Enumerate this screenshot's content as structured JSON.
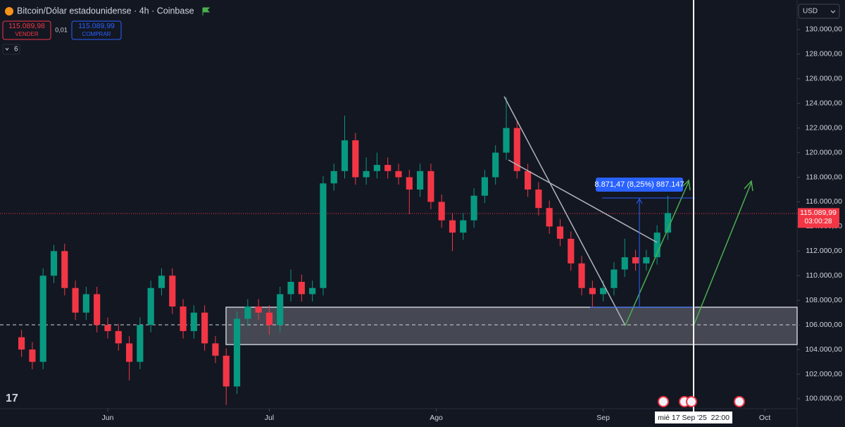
{
  "header": {
    "symbol": "Bitcoin/Dólar estadounidense · 4h · Coinbase",
    "sell_price": "115.089,98",
    "sell_label": "VENDER",
    "spread": "0,01",
    "buy_price": "115.089,99",
    "buy_label": "COMPRAR",
    "indicators": "6",
    "currency": "USD"
  },
  "chart_data": {
    "type": "candlestick",
    "x": [
      4,
      6,
      8,
      10,
      12,
      14,
      16,
      18,
      20,
      22,
      24,
      26,
      28,
      30,
      32,
      34,
      36,
      38,
      40,
      42,
      44,
      46,
      48,
      50,
      52,
      54,
      56,
      58,
      60,
      62,
      64,
      66,
      68,
      70,
      72,
      74,
      76,
      78,
      80,
      82,
      84,
      86,
      88,
      90,
      92,
      94,
      96,
      98,
      100,
      102,
      104,
      106,
      108,
      110,
      112,
      114,
      116,
      118,
      120,
      122,
      124
    ],
    "open": [
      105000,
      104000,
      103000,
      110000,
      112000,
      109000,
      107000,
      108500,
      106000,
      105500,
      104500,
      103000,
      106000,
      109000,
      110000,
      107500,
      105500,
      107000,
      104500,
      103500,
      101000,
      106500,
      107500,
      107000,
      106000,
      108500,
      109500,
      108500,
      109000,
      117500,
      118500,
      121000,
      118000,
      118500,
      119000,
      118500,
      118000,
      117000,
      118500,
      116000,
      114500,
      113500,
      114500,
      116500,
      118000,
      120000,
      122000,
      118500,
      117000,
      115500,
      114000,
      113000,
      111000,
      109000,
      108500,
      109000,
      110500,
      111500,
      111000,
      111500,
      113500
    ],
    "high": [
      105600,
      104600,
      110600,
      112500,
      112600,
      109600,
      109100,
      109100,
      106600,
      106100,
      105100,
      106600,
      109600,
      110600,
      110600,
      108100,
      107600,
      107600,
      105100,
      104100,
      107100,
      108100,
      108100,
      107600,
      109100,
      110500,
      110100,
      109600,
      118100,
      119100,
      123000,
      121600,
      119600,
      120000,
      119600,
      119100,
      118600,
      119100,
      119100,
      116600,
      115100,
      115100,
      117100,
      118600,
      120600,
      124500,
      122600,
      119100,
      117600,
      116100,
      114600,
      113600,
      111600,
      109600,
      109600,
      111100,
      113000,
      112100,
      112100,
      114100,
      116500
    ],
    "low": [
      103400,
      102400,
      102400,
      109400,
      108400,
      106400,
      106400,
      105400,
      104900,
      103900,
      101500,
      102400,
      105400,
      108400,
      106900,
      104900,
      104900,
      103900,
      102900,
      99500,
      100400,
      105900,
      106400,
      105200,
      105400,
      107900,
      107900,
      107900,
      108400,
      116900,
      117900,
      117400,
      117400,
      117900,
      117900,
      117400,
      115000,
      116400,
      115400,
      113900,
      112000,
      112900,
      113900,
      115900,
      117400,
      119400,
      117900,
      116400,
      114900,
      113400,
      112400,
      110400,
      108400,
      107400,
      107900,
      108400,
      109900,
      110400,
      110400,
      110900,
      112900
    ],
    "close": [
      104000,
      103000,
      110000,
      112000,
      109000,
      107000,
      108500,
      106000,
      105500,
      104500,
      103000,
      106000,
      109000,
      110000,
      107500,
      105500,
      107000,
      104500,
      103500,
      101000,
      106500,
      107500,
      107000,
      106000,
      108500,
      109500,
      108500,
      109000,
      117500,
      118500,
      121000,
      118000,
      118500,
      119000,
      118500,
      118000,
      117000,
      118500,
      116000,
      114500,
      113500,
      114500,
      116500,
      118000,
      120000,
      122000,
      118500,
      117000,
      115500,
      114000,
      113000,
      111000,
      109000,
      108500,
      109000,
      110500,
      111500,
      111000,
      111500,
      113500,
      115090
    ],
    "up_color": "#089981",
    "down_color": "#f23645",
    "xlim": [
      0,
      148
    ],
    "xticks": [
      {
        "value": 20,
        "label": "Jun"
      },
      {
        "value": 50,
        "label": "Jul"
      },
      {
        "value": 81,
        "label": "Ago"
      },
      {
        "value": 112,
        "label": "Sep"
      },
      {
        "value": 142,
        "label": "Oct"
      }
    ],
    "ylim": [
      99000,
      132000
    ],
    "yticks": [
      {
        "value": 100000,
        "label": "100.000,00"
      },
      {
        "value": 102000,
        "label": "102.000,00"
      },
      {
        "value": 104000,
        "label": "104.000,00"
      },
      {
        "value": 106000,
        "label": "106.000,00"
      },
      {
        "value": 108000,
        "label": "108.000,00"
      },
      {
        "value": 110000,
        "label": "110.000,00"
      },
      {
        "value": 112000,
        "label": "112.000,00"
      },
      {
        "value": 114000,
        "label": "114.000,00"
      },
      {
        "value": 116000,
        "label": "116.000,00"
      },
      {
        "value": 118000,
        "label": "118.000,00"
      },
      {
        "value": 120000,
        "label": "120.000,00"
      },
      {
        "value": 122000,
        "label": "122.000,00"
      },
      {
        "value": 124000,
        "label": "124.000,00"
      },
      {
        "value": 126000,
        "label": "126.000,00"
      },
      {
        "value": 128000,
        "label": "128.000,00"
      },
      {
        "value": 130000,
        "label": "130.000,00"
      }
    ],
    "grid": false,
    "last_price": {
      "value": 115089.99,
      "label": "115.089,99"
    },
    "countdown": "03:00:28",
    "measure_label": "8.871,47 (8,25%) 887.147",
    "crosshair_date": "mié 17 Sep '25  22:00"
  }
}
